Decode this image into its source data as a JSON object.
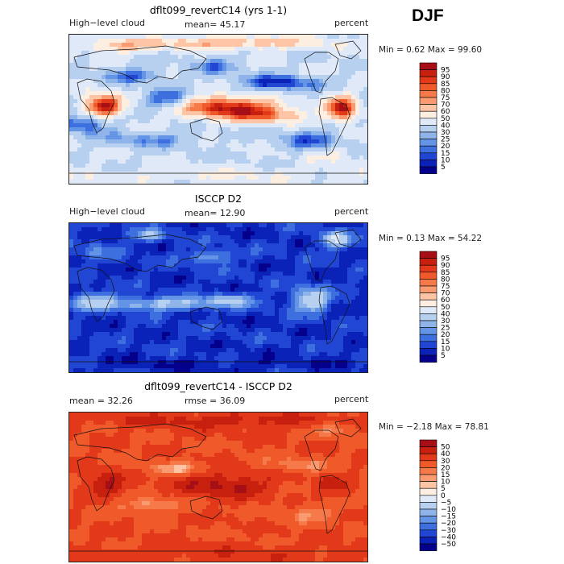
{
  "season": "DJF",
  "chart_data": [
    {
      "type": "heatmap",
      "title": "dflt099_revertC14 (yrs 1-1)",
      "left_label": "High−level cloud",
      "mean_text": "mean=  45.17",
      "units": "percent",
      "min_max_text": "Min =    0.62 Max =   99.60",
      "min": 0.62,
      "max": 99.6,
      "colorbar_levels": [
        "95",
        "90",
        "85",
        "80",
        "75",
        "70",
        "60",
        "50",
        "40",
        "30",
        "25",
        "20",
        "15",
        "10",
        "5"
      ],
      "colorbar_colors": [
        "#a50f15",
        "#c8200e",
        "#e2391a",
        "#f05a2b",
        "#f6794a",
        "#fa9a70",
        "#fdc5a5",
        "#fdeee2",
        "#dfe9f7",
        "#b7d0f0",
        "#8fb4ea",
        "#6394e5",
        "#3e6fdf",
        "#2246d4",
        "#0b22b8",
        "#05008c"
      ]
    },
    {
      "type": "heatmap",
      "title": "ISCCP D2",
      "left_label": "High−level cloud",
      "mean_text": "mean=  12.90",
      "units": "percent",
      "min_max_text": "Min =    0.13 Max =   54.22",
      "min": 0.13,
      "max": 54.22,
      "colorbar_levels": [
        "95",
        "90",
        "85",
        "80",
        "75",
        "70",
        "60",
        "50",
        "40",
        "30",
        "25",
        "20",
        "15",
        "10",
        "5"
      ],
      "colorbar_colors": [
        "#a50f15",
        "#c8200e",
        "#e2391a",
        "#f05a2b",
        "#f6794a",
        "#fa9a70",
        "#fdc5a5",
        "#fdeee2",
        "#dfe9f7",
        "#b7d0f0",
        "#8fb4ea",
        "#6394e5",
        "#3e6fdf",
        "#2246d4",
        "#0b22b8",
        "#05008c"
      ]
    },
    {
      "type": "heatmap",
      "title": "dflt099_revertC14 - ISCCP D2",
      "left_label": "mean =   32.26",
      "mean_text": "rmse =   36.09",
      "units": "percent",
      "min_max_text": "Min =  −2.18 Max =   78.81",
      "min": -2.18,
      "max": 78.81,
      "colorbar_levels": [
        "50",
        "40",
        "30",
        "20",
        "15",
        "10",
        "5",
        "0",
        "−5",
        "−10",
        "−15",
        "−20",
        "−30",
        "−40",
        "−50"
      ],
      "colorbar_colors": [
        "#a50f15",
        "#c8200e",
        "#e2391a",
        "#f05a2b",
        "#f6794a",
        "#fa9a70",
        "#fdc5a5",
        "#fdeee2",
        "#dfe9f7",
        "#b7d0f0",
        "#8fb4ea",
        "#6394e5",
        "#3e6fdf",
        "#2246d4",
        "#0b22b8",
        "#05008c"
      ]
    }
  ]
}
